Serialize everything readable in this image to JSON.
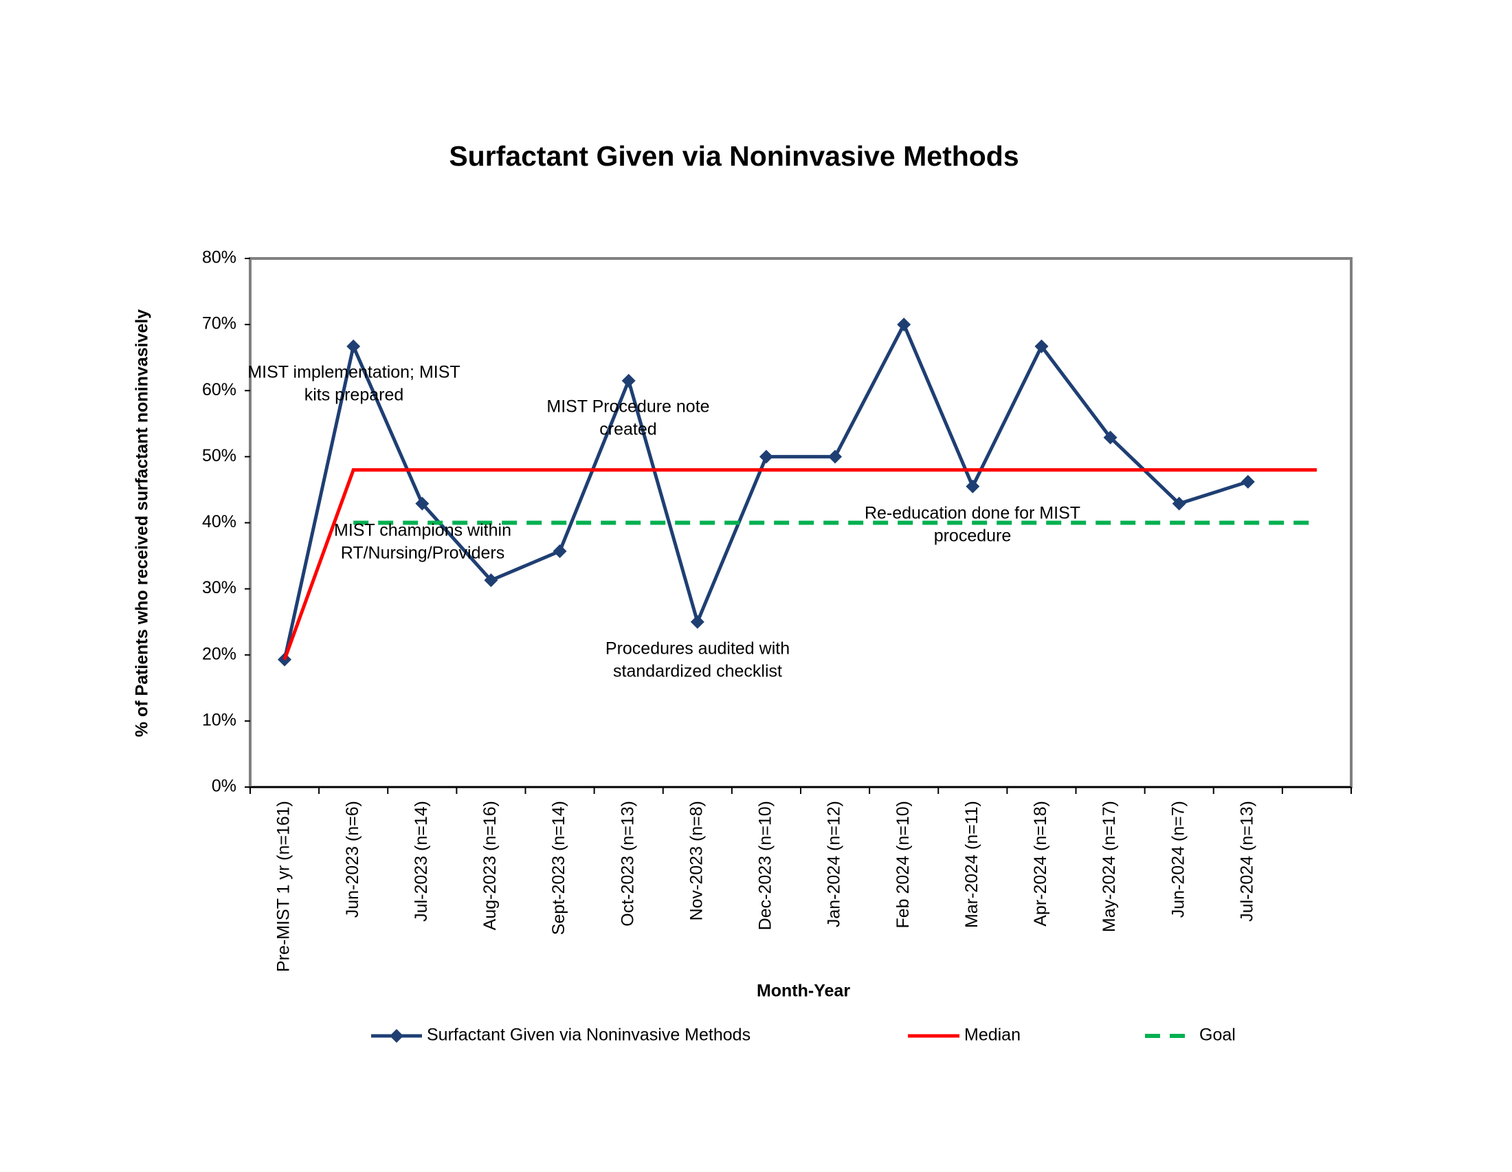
{
  "chart_data": {
    "type": "line",
    "title": "Surfactant Given via Noninvasive Methods",
    "x_label": "Month-Year",
    "y_label": "% of Patients who received surfactant noninvasively",
    "categories": [
      "Pre-MIST 1 yr (n=161)",
      "Jun-2023 (n=6)",
      "Jul-2023 (n=14)",
      "Aug-2023 (n=16)",
      "Sept-2023 (n=14)",
      "Oct-2023 (n=13)",
      "Nov-2023 (n=8)",
      "Dec-2023 (n=10)",
      "Jan-2024 (n=12)",
      "Feb 2024 (n=10)",
      "Mar-2024 (n=11)",
      "Apr-2024 (n=18)",
      "May-2024 (n=17)",
      "Jun-2024 (n=7)",
      "Jul-2024 (n=13)",
      null
    ],
    "series": [
      {
        "name": "Surfactant Given via Noninvasive Methods",
        "color": "#1f3f73",
        "style": "solid",
        "marker": "diamond",
        "values": [
          19.3,
          66.7,
          42.9,
          31.3,
          35.7,
          61.5,
          25,
          50,
          50,
          70,
          45.5,
          66.7,
          52.9,
          42.9,
          46.2,
          null
        ]
      },
      {
        "name": "Median",
        "color": "#ff0000",
        "style": "solid",
        "values": [
          19.3,
          48,
          48,
          48,
          48,
          48,
          48,
          48,
          48,
          48,
          48,
          48,
          48,
          48,
          48,
          48
        ]
      },
      {
        "name": "Goal",
        "color": "#00b050",
        "style": "dashed",
        "values": [
          null,
          40,
          40,
          40,
          40,
          40,
          40,
          40,
          40,
          40,
          40,
          40,
          40,
          40,
          40,
          40
        ]
      }
    ],
    "ylim": [
      0,
      80
    ],
    "yticks": [
      {
        "value": 0,
        "label": "0%"
      },
      {
        "value": 10,
        "label": "10%"
      },
      {
        "value": 20,
        "label": "20%"
      },
      {
        "value": 30,
        "label": "30%"
      },
      {
        "value": 40,
        "label": "40%"
      },
      {
        "value": 50,
        "label": "50%"
      },
      {
        "value": 60,
        "label": "60%"
      },
      {
        "value": 70,
        "label": "70%"
      },
      {
        "value": 80,
        "label": "80%"
      }
    ],
    "grid": false,
    "legend": "bottom",
    "annotations": [
      [
        "MIST implementation; MIST",
        "kits prepared"
      ],
      [
        "MIST champions within",
        "RT/Nursing/Providers"
      ],
      [
        "MIST Procedure note",
        "created"
      ],
      [
        "Procedures audited with",
        "standardized checklist"
      ],
      [
        "Re-education done for MIST",
        "procedure"
      ]
    ]
  }
}
